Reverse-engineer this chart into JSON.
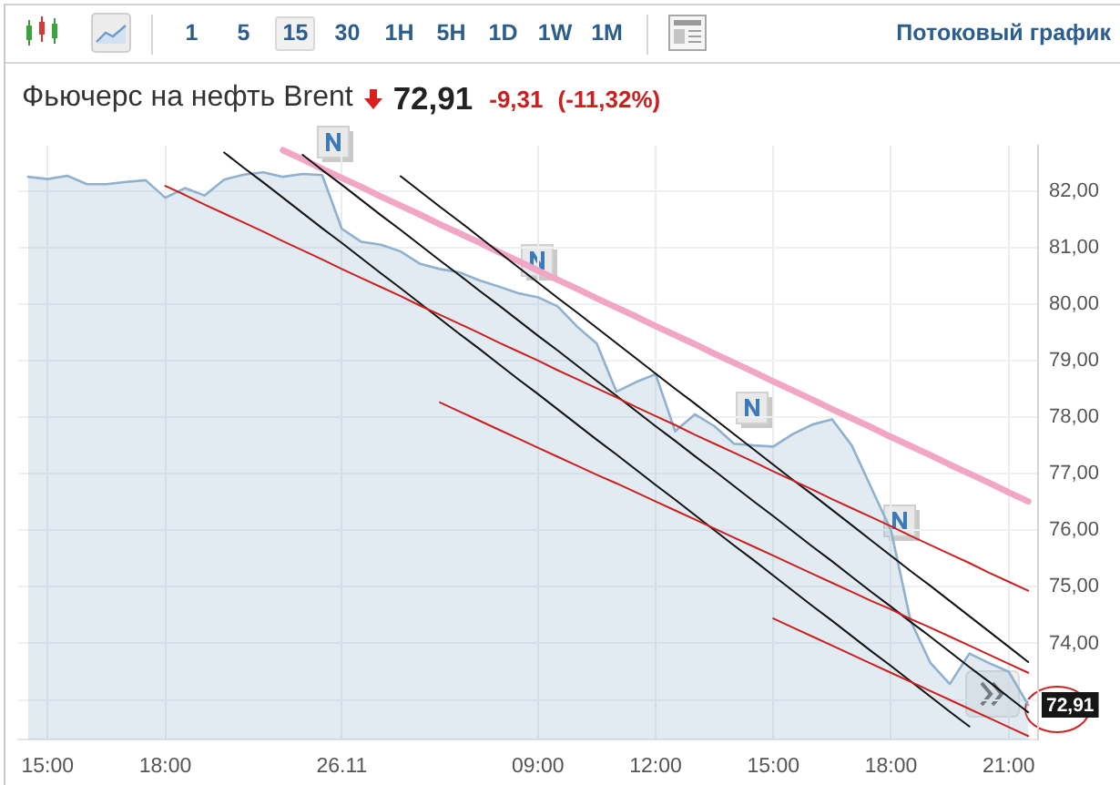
{
  "chart_data": {
    "type": "area",
    "title": "Фьючерс на нефть Brent",
    "subtitle": "72,91 -9,31 (-11,32%)",
    "categories": [
      null,
      "15:00",
      null,
      null,
      null,
      null,
      null,
      "18:00",
      null,
      null,
      null,
      null,
      null,
      null,
      null,
      null,
      "26.11",
      null,
      null,
      null,
      null,
      null,
      null,
      null,
      null,
      null,
      "09:00",
      null,
      null,
      null,
      null,
      null,
      "12:00",
      null,
      null,
      null,
      null,
      null,
      "15:00",
      null,
      null,
      null,
      null,
      null,
      "18:00",
      null,
      null,
      null,
      null,
      null,
      "21:00",
      null
    ],
    "series": [
      {
        "color": "#8fb1cd",
        "values": [
          82.25,
          82.21,
          82.27,
          82.12,
          82.12,
          82.16,
          82.19,
          81.88,
          82.05,
          81.92,
          82.2,
          82.29,
          82.33,
          82.25,
          82.3,
          82.28,
          81.33,
          81.1,
          81.05,
          80.93,
          80.71,
          80.62,
          80.56,
          80.42,
          80.31,
          80.19,
          80.12,
          79.96,
          79.6,
          79.3,
          78.45,
          78.62,
          78.76,
          77.75,
          78.05,
          77.84,
          77.53,
          77.5,
          77.48,
          77.7,
          77.87,
          77.96,
          77.5,
          76.75,
          76.0,
          74.4,
          73.66,
          73.28,
          73.82,
          73.65,
          73.5,
          72.91
        ]
      },
      {
        "type": "line",
        "color": "#f2a6c5",
        "values": [
          null,
          null,
          null,
          null,
          null,
          null,
          null,
          null,
          null,
          null,
          null,
          null,
          null,
          82.72,
          82.56,
          82.39,
          82.23,
          82.07,
          81.9,
          81.74,
          81.58,
          81.41,
          81.25,
          81.09,
          80.92,
          80.76,
          80.59,
          80.43,
          80.27,
          80.1,
          79.94,
          79.78,
          79.61,
          79.45,
          79.29,
          79.12,
          78.96,
          78.8,
          78.63,
          78.47,
          78.31,
          78.14,
          77.98,
          77.82,
          77.65,
          77.49,
          77.33,
          77.16,
          77.0,
          76.84,
          76.67,
          76.51
        ]
      },
      {
        "type": "line",
        "color": "#111111",
        "values": [
          null,
          null,
          null,
          null,
          null,
          null,
          null,
          null,
          null,
          null,
          82.68,
          82.41,
          82.15,
          81.88,
          81.61,
          81.34,
          81.08,
          80.81,
          80.54,
          80.28,
          80.01,
          79.74,
          79.47,
          79.21,
          78.94,
          78.67,
          78.41,
          78.14,
          77.87,
          77.6,
          77.34,
          77.07,
          76.8,
          76.54,
          76.27,
          76.0,
          75.73,
          75.47,
          75.2,
          74.93,
          74.66,
          74.4,
          74.13,
          73.86,
          73.6,
          73.33,
          73.06,
          72.79,
          72.53,
          null,
          null,
          null
        ]
      },
      {
        "type": "line",
        "color": "#111111",
        "values": [
          null,
          null,
          null,
          null,
          null,
          null,
          null,
          null,
          null,
          null,
          null,
          null,
          null,
          null,
          82.64,
          82.37,
          82.11,
          81.84,
          81.57,
          81.31,
          81.04,
          80.77,
          80.51,
          80.24,
          79.98,
          79.71,
          79.44,
          79.18,
          78.91,
          78.64,
          78.38,
          78.11,
          77.84,
          77.58,
          77.31,
          77.05,
          76.78,
          76.51,
          76.25,
          75.98,
          75.71,
          75.45,
          75.18,
          74.91,
          74.65,
          74.38,
          74.12,
          73.85,
          73.58,
          73.32,
          73.05,
          72.78
        ]
      },
      {
        "type": "line",
        "color": "#111111",
        "values": [
          null,
          null,
          null,
          null,
          null,
          null,
          null,
          null,
          null,
          null,
          null,
          null,
          null,
          null,
          null,
          null,
          null,
          null,
          null,
          82.26,
          81.99,
          81.72,
          81.46,
          81.19,
          80.92,
          80.65,
          80.38,
          80.11,
          79.85,
          79.58,
          79.31,
          79.04,
          78.77,
          78.5,
          78.24,
          77.97,
          77.7,
          77.43,
          77.16,
          76.89,
          76.63,
          76.36,
          76.09,
          75.82,
          75.55,
          75.28,
          75.02,
          74.75,
          74.48,
          74.21,
          73.94,
          73.67
        ]
      },
      {
        "type": "line",
        "color": "#cc1f1f",
        "values": [
          null,
          null,
          null,
          null,
          null,
          null,
          null,
          82.09,
          81.93,
          81.76,
          81.6,
          81.44,
          81.28,
          81.11,
          80.95,
          80.79,
          80.62,
          80.46,
          80.3,
          80.14,
          79.97,
          79.81,
          79.65,
          79.49,
          79.32,
          79.16,
          79.0,
          78.83,
          78.67,
          78.51,
          78.35,
          78.18,
          78.02,
          77.86,
          77.69,
          77.53,
          77.37,
          77.21,
          77.04,
          76.88,
          76.72,
          76.55,
          76.39,
          76.23,
          76.07,
          75.9,
          75.74,
          75.58,
          75.42,
          75.25,
          75.09,
          74.93
        ]
      },
      {
        "type": "line",
        "color": "#cc1f1f",
        "values": [
          null,
          null,
          null,
          null,
          null,
          null,
          null,
          null,
          null,
          null,
          null,
          null,
          null,
          null,
          null,
          null,
          null,
          null,
          null,
          null,
          null,
          78.26,
          78.1,
          77.94,
          77.78,
          77.62,
          77.46,
          77.3,
          77.14,
          76.98,
          76.83,
          76.67,
          76.51,
          76.35,
          76.19,
          76.03,
          75.87,
          75.71,
          75.55,
          75.39,
          75.23,
          75.07,
          74.91,
          74.75,
          74.6,
          74.43,
          74.28,
          74.12,
          73.96,
          73.8,
          73.64,
          73.48
        ]
      },
      {
        "type": "line",
        "color": "#cc1f1f",
        "values": [
          null,
          null,
          null,
          null,
          null,
          null,
          null,
          null,
          null,
          null,
          null,
          null,
          null,
          null,
          null,
          null,
          null,
          null,
          null,
          null,
          null,
          null,
          null,
          null,
          null,
          null,
          null,
          null,
          null,
          null,
          null,
          null,
          null,
          null,
          null,
          null,
          null,
          null,
          74.44,
          74.28,
          74.12,
          73.96,
          73.8,
          73.64,
          73.48,
          73.32,
          73.16,
          73.0,
          72.84,
          72.68,
          72.52,
          72.36
        ]
      }
    ],
    "ylim": [
      72.3,
      82.8
    ],
    "yticks": [
      {
        "value": 73,
        "label": null
      },
      {
        "value": 74,
        "label": "74,00"
      },
      {
        "value": 75,
        "label": "75,00"
      },
      {
        "value": 76,
        "label": "76,00"
      },
      {
        "value": 77,
        "label": "77,00"
      },
      {
        "value": 78,
        "label": "78,00"
      },
      {
        "value": 79,
        "label": "79,00"
      },
      {
        "value": 80,
        "label": "80,00"
      },
      {
        "value": 81,
        "label": "81,00"
      },
      {
        "value": 82,
        "label": "82,00"
      }
    ],
    "grid": true,
    "annotations": [
      "1 5 15 30 1H 5H 1D 1W 1M",
      "Потоковый график",
      {
        "text": "72,91",
        "y": 72.91
      }
    ]
  }
}
